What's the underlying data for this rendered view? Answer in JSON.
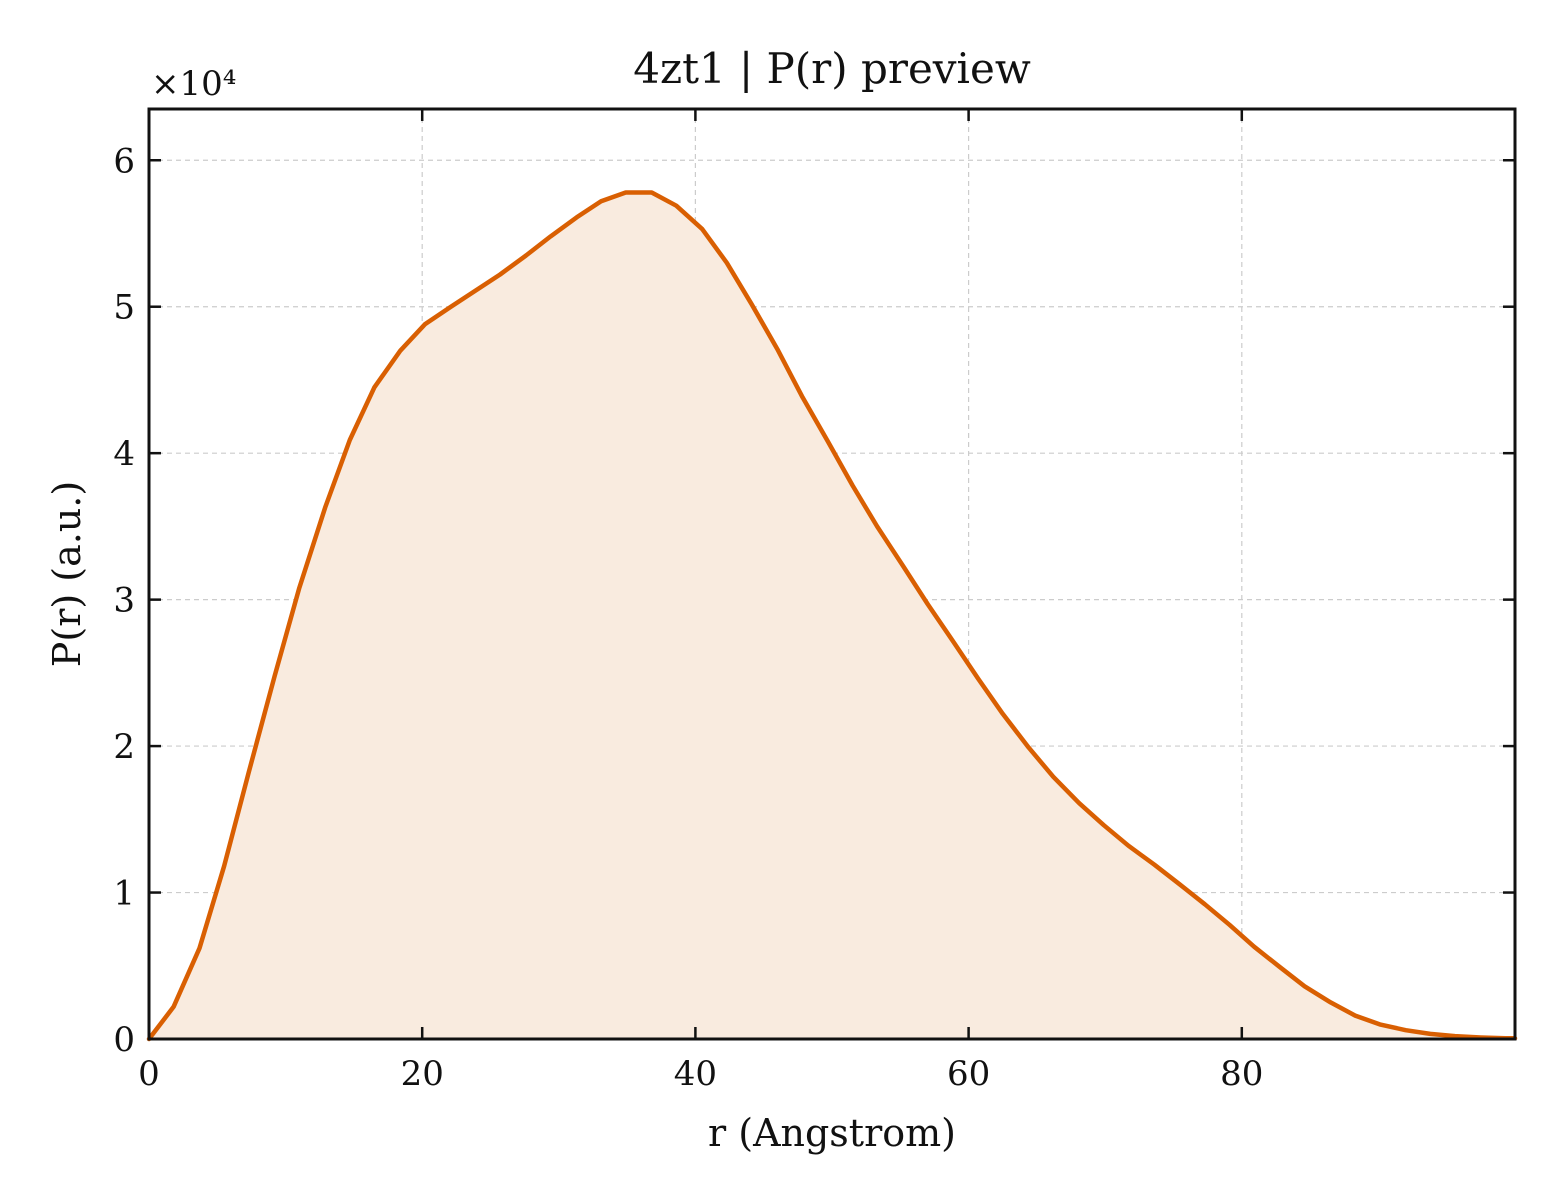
{
  "chart_data": {
    "type": "area",
    "title": "4zt1 | P(r) preview",
    "xlabel": "r (Angstrom)",
    "ylabel": "P(r) (a.u.)",
    "y_scale_label": "×10⁴",
    "xlim": [
      0,
      100
    ],
    "ylim": [
      0,
      6.35
    ],
    "x_ticks": [
      0,
      20,
      40,
      60,
      80
    ],
    "x_tick_labels": [
      "0",
      "20",
      "40",
      "60",
      "80"
    ],
    "y_ticks": [
      0,
      1,
      2,
      3,
      4,
      5,
      6
    ],
    "y_tick_labels": [
      "0",
      "1",
      "2",
      "3",
      "4",
      "5",
      "6"
    ],
    "grid": true,
    "line_color": "#d95f02",
    "fill_color": "#f9ebdf",
    "series": [
      {
        "x": [
          0,
          1.8,
          3.7,
          5.5,
          7.3,
          9.2,
          11.0,
          12.9,
          14.7,
          16.5,
          18.4,
          20.2,
          22.1,
          23.9,
          25.7,
          27.6,
          29.4,
          31.3,
          33.1,
          34.9,
          36.8,
          38.6,
          40.5,
          42.3,
          44.1,
          46.0,
          47.8,
          49.7,
          51.5,
          53.3,
          55.2,
          57.0,
          58.9,
          60.7,
          62.5,
          64.4,
          66.2,
          68.1,
          69.9,
          71.7,
          73.6,
          75.4,
          77.3,
          79.1,
          80.9,
          82.8,
          84.6,
          86.5,
          88.3,
          90.1,
          92.0,
          93.8,
          95.6,
          97.5,
          99.3,
          100
        ],
        "y": [
          0.0,
          0.22,
          0.62,
          1.18,
          1.82,
          2.48,
          3.08,
          3.63,
          4.09,
          4.45,
          4.7,
          4.88,
          5.0,
          5.11,
          5.22,
          5.35,
          5.48,
          5.61,
          5.72,
          5.78,
          5.78,
          5.69,
          5.53,
          5.3,
          5.02,
          4.71,
          4.39,
          4.08,
          3.78,
          3.5,
          3.23,
          2.97,
          2.71,
          2.46,
          2.22,
          1.99,
          1.79,
          1.61,
          1.46,
          1.32,
          1.19,
          1.06,
          0.92,
          0.78,
          0.63,
          0.49,
          0.36,
          0.25,
          0.16,
          0.1,
          0.06,
          0.035,
          0.02,
          0.01,
          0.005,
          0.005
        ]
      }
    ]
  }
}
